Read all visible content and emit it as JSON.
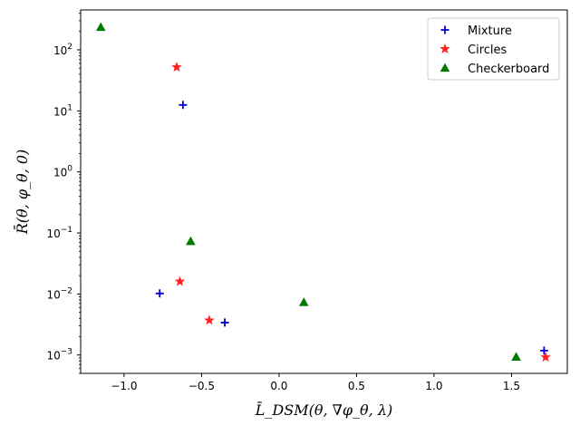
{
  "chart_data": {
    "type": "scatter",
    "xlabel": "L̄_DSM(θ, ∇φ_θ, λ)",
    "ylabel": "R̄(θ, φ_θ, 0)",
    "xscale": "linear",
    "yscale": "log",
    "xlim": [
      -1.28,
      1.86
    ],
    "ylim": [
      0.0005,
      450
    ],
    "x_ticks": [
      -1.0,
      -0.5,
      0.0,
      0.5,
      1.0,
      1.5
    ],
    "x_tick_labels": [
      "−1.0",
      "−0.5",
      "0.0",
      "0.5",
      "1.0",
      "1.5"
    ],
    "y_ticks": [
      0.001,
      0.01,
      0.1,
      1,
      10,
      100
    ],
    "y_tick_labels": [
      {
        "base": "10",
        "exp": "−3"
      },
      {
        "base": "10",
        "exp": "−2"
      },
      {
        "base": "10",
        "exp": "−1"
      },
      {
        "base": "10",
        "exp": "0"
      },
      {
        "base": "10",
        "exp": "1"
      },
      {
        "base": "10",
        "exp": "2"
      }
    ],
    "grid": false,
    "legend_position": "top-right",
    "series": [
      {
        "name": "Mixture",
        "marker": "plus",
        "color": "#0000cc",
        "points": [
          {
            "x": -0.62,
            "y": 12.5
          },
          {
            "x": -0.77,
            "y": 0.0102
          },
          {
            "x": -0.35,
            "y": 0.0034
          },
          {
            "x": 1.71,
            "y": 0.00118
          }
        ]
      },
      {
        "name": "Circles",
        "marker": "star",
        "color": "#ff2020",
        "points": [
          {
            "x": -0.66,
            "y": 52
          },
          {
            "x": -0.64,
            "y": 0.016
          },
          {
            "x": -0.45,
            "y": 0.0037
          },
          {
            "x": 1.72,
            "y": 0.00092
          }
        ]
      },
      {
        "name": "Checkerboard",
        "marker": "triangle",
        "color": "#007a00",
        "points": [
          {
            "x": -1.15,
            "y": 235
          },
          {
            "x": -0.57,
            "y": 0.073
          },
          {
            "x": 0.16,
            "y": 0.0073
          },
          {
            "x": 1.53,
            "y": 0.00093
          }
        ]
      }
    ]
  }
}
